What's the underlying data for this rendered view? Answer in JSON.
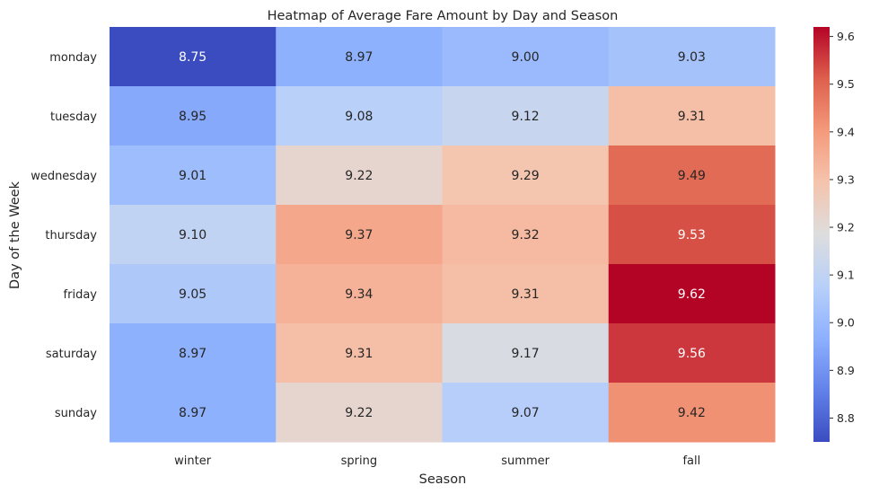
{
  "chart_data": {
    "type": "heatmap",
    "title": "Heatmap of Average Fare Amount by Day and Season",
    "xlabel": "Season",
    "ylabel": "Day of the Week",
    "x_categories": [
      "winter",
      "spring",
      "summer",
      "fall"
    ],
    "y_categories": [
      "monday",
      "tuesday",
      "wednesday",
      "thursday",
      "friday",
      "saturday",
      "sunday"
    ],
    "values": [
      [
        8.75,
        8.97,
        9.0,
        9.03
      ],
      [
        8.95,
        9.08,
        9.12,
        9.31
      ],
      [
        9.01,
        9.22,
        9.29,
        9.49
      ],
      [
        9.1,
        9.37,
        9.32,
        9.53
      ],
      [
        9.05,
        9.34,
        9.31,
        9.62
      ],
      [
        8.97,
        9.31,
        9.17,
        9.56
      ],
      [
        8.97,
        9.22,
        9.07,
        9.42
      ]
    ],
    "value_labels": [
      [
        "8.75",
        "8.97",
        "9.00",
        "9.03"
      ],
      [
        "8.95",
        "9.08",
        "9.12",
        "9.31"
      ],
      [
        "9.01",
        "9.22",
        "9.29",
        "9.49"
      ],
      [
        "9.10",
        "9.37",
        "9.32",
        "9.53"
      ],
      [
        "9.05",
        "9.34",
        "9.31",
        "9.62"
      ],
      [
        "8.97",
        "9.31",
        "9.17",
        "9.56"
      ],
      [
        "8.97",
        "9.22",
        "9.07",
        "9.42"
      ]
    ],
    "colormap": "coolwarm",
    "colorbar": {
      "range": [
        8.75,
        9.62
      ],
      "ticks": [
        "8.8",
        "8.9",
        "9.0",
        "9.1",
        "9.2",
        "9.3",
        "9.4",
        "9.5",
        "9.6"
      ]
    }
  }
}
